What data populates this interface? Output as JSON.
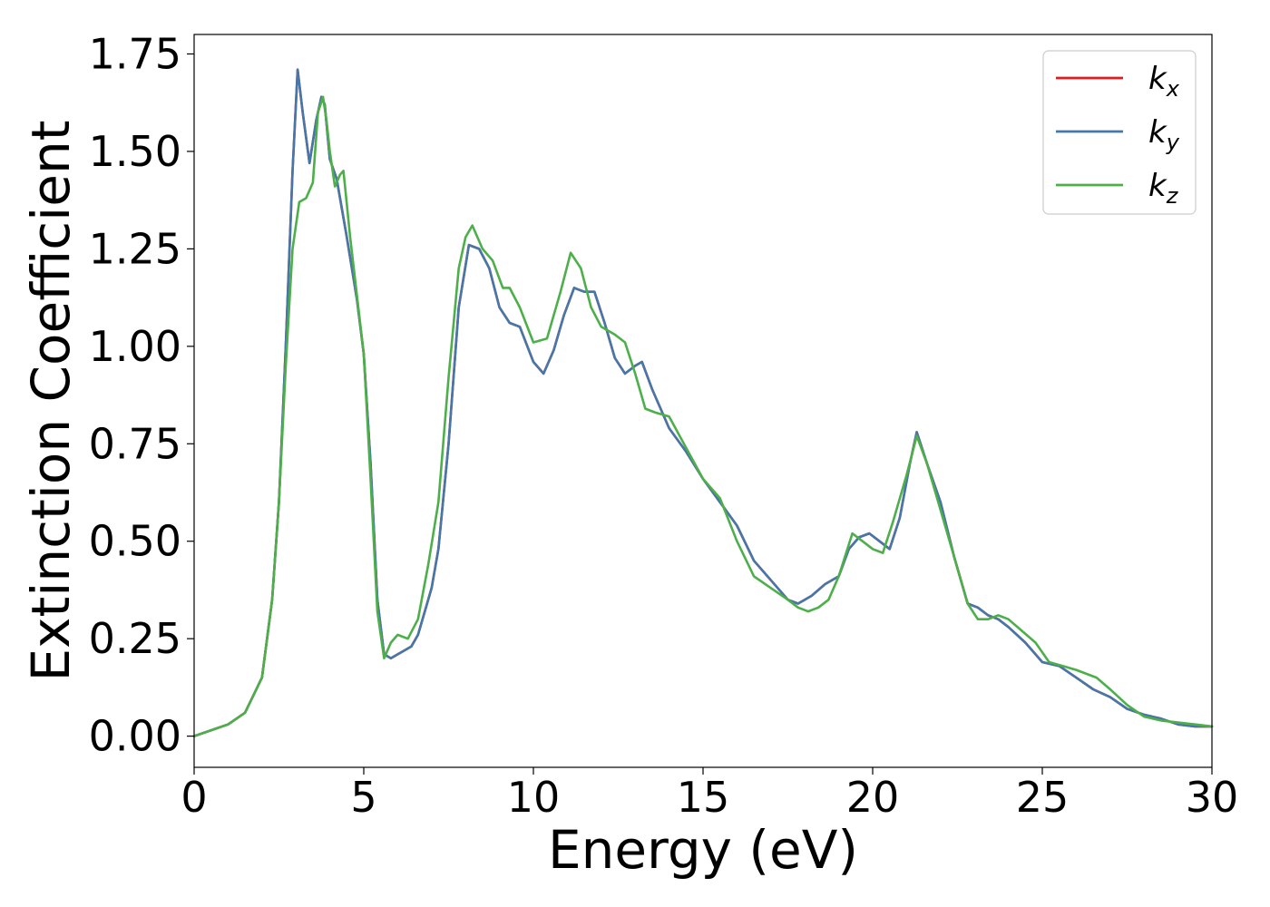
{
  "chart_data": {
    "type": "line",
    "title": "",
    "xlabel": "Energy (eV)",
    "ylabel": "Extinction Coefficient",
    "xlim": [
      0,
      30
    ],
    "ylim": [
      -0.08,
      1.8
    ],
    "xticks": [
      "0",
      "5",
      "10",
      "15",
      "20",
      "25",
      "30"
    ],
    "xtick_values": [
      0,
      5,
      10,
      15,
      20,
      25,
      30
    ],
    "yticks": [
      "0.00",
      "0.25",
      "0.50",
      "0.75",
      "1.00",
      "1.25",
      "1.50",
      "1.75"
    ],
    "ytick_values": [
      0,
      0.25,
      0.5,
      0.75,
      1.0,
      1.25,
      1.5,
      1.75
    ],
    "grid": false,
    "legend_position": "top-right",
    "series": [
      {
        "name": "k_x",
        "label_base": "k",
        "label_sub": "x",
        "color": "#e41a1c",
        "x": [
          0,
          1,
          1.5,
          2,
          2.3,
          2.5,
          2.7,
          2.9,
          3.05,
          3.2,
          3.4,
          3.6,
          3.75,
          3.85,
          4.0,
          4.2,
          4.5,
          4.8,
          5.0,
          5.2,
          5.4,
          5.6,
          5.8,
          6.0,
          6.2,
          6.4,
          6.6,
          6.8,
          7.0,
          7.2,
          7.5,
          7.8,
          8.1,
          8.4,
          8.7,
          9.0,
          9.3,
          9.6,
          10.0,
          10.3,
          10.6,
          10.9,
          11.2,
          11.5,
          11.8,
          12.1,
          12.4,
          12.7,
          13.0,
          13.2,
          13.5,
          14.0,
          14.5,
          15.0,
          15.5,
          16.0,
          16.5,
          17.0,
          17.5,
          17.8,
          18.2,
          18.6,
          19.0,
          19.3,
          19.6,
          19.9,
          20.2,
          20.5,
          20.8,
          21.1,
          21.3,
          21.6,
          22.0,
          22.4,
          22.8,
          23.1,
          23.4,
          23.7,
          24.0,
          24.5,
          25.0,
          25.5,
          26.0,
          26.5,
          27.0,
          27.5,
          28.0,
          28.5,
          29.0,
          29.5,
          30.0
        ],
        "y": [
          0,
          0.03,
          0.06,
          0.15,
          0.35,
          0.6,
          1.0,
          1.45,
          1.71,
          1.6,
          1.47,
          1.58,
          1.64,
          1.62,
          1.48,
          1.43,
          1.28,
          1.12,
          0.98,
          0.7,
          0.35,
          0.21,
          0.2,
          0.21,
          0.22,
          0.23,
          0.26,
          0.32,
          0.38,
          0.48,
          0.75,
          1.1,
          1.26,
          1.25,
          1.2,
          1.1,
          1.06,
          1.05,
          0.96,
          0.93,
          0.99,
          1.08,
          1.15,
          1.14,
          1.14,
          1.06,
          0.97,
          0.93,
          0.95,
          0.96,
          0.89,
          0.79,
          0.73,
          0.66,
          0.6,
          0.54,
          0.45,
          0.4,
          0.35,
          0.34,
          0.36,
          0.39,
          0.41,
          0.48,
          0.51,
          0.52,
          0.5,
          0.48,
          0.56,
          0.7,
          0.78,
          0.7,
          0.6,
          0.46,
          0.34,
          0.33,
          0.31,
          0.3,
          0.28,
          0.24,
          0.19,
          0.18,
          0.15,
          0.12,
          0.1,
          0.07,
          0.055,
          0.045,
          0.03,
          0.025,
          0.025
        ]
      },
      {
        "name": "k_y",
        "label_base": "k",
        "label_sub": "y",
        "color": "#4477aa",
        "x": [
          0,
          1,
          1.5,
          2,
          2.3,
          2.5,
          2.7,
          2.9,
          3.05,
          3.2,
          3.4,
          3.6,
          3.75,
          3.85,
          4.0,
          4.2,
          4.5,
          4.8,
          5.0,
          5.2,
          5.4,
          5.6,
          5.8,
          6.0,
          6.2,
          6.4,
          6.6,
          6.8,
          7.0,
          7.2,
          7.5,
          7.8,
          8.1,
          8.4,
          8.7,
          9.0,
          9.3,
          9.6,
          10.0,
          10.3,
          10.6,
          10.9,
          11.2,
          11.5,
          11.8,
          12.1,
          12.4,
          12.7,
          13.0,
          13.2,
          13.5,
          14.0,
          14.5,
          15.0,
          15.5,
          16.0,
          16.5,
          17.0,
          17.5,
          17.8,
          18.2,
          18.6,
          19.0,
          19.3,
          19.6,
          19.9,
          20.2,
          20.5,
          20.8,
          21.1,
          21.3,
          21.6,
          22.0,
          22.4,
          22.8,
          23.1,
          23.4,
          23.7,
          24.0,
          24.5,
          25.0,
          25.5,
          26.0,
          26.5,
          27.0,
          27.5,
          28.0,
          28.5,
          29.0,
          29.5,
          30.0
        ],
        "y": [
          0,
          0.03,
          0.06,
          0.15,
          0.35,
          0.6,
          1.0,
          1.45,
          1.71,
          1.6,
          1.47,
          1.58,
          1.64,
          1.62,
          1.48,
          1.43,
          1.28,
          1.12,
          0.98,
          0.7,
          0.35,
          0.21,
          0.2,
          0.21,
          0.22,
          0.23,
          0.26,
          0.32,
          0.38,
          0.48,
          0.75,
          1.1,
          1.26,
          1.25,
          1.2,
          1.1,
          1.06,
          1.05,
          0.96,
          0.93,
          0.99,
          1.08,
          1.15,
          1.14,
          1.14,
          1.06,
          0.97,
          0.93,
          0.95,
          0.96,
          0.89,
          0.79,
          0.73,
          0.66,
          0.6,
          0.54,
          0.45,
          0.4,
          0.35,
          0.34,
          0.36,
          0.39,
          0.41,
          0.48,
          0.51,
          0.52,
          0.5,
          0.48,
          0.56,
          0.7,
          0.78,
          0.7,
          0.6,
          0.46,
          0.34,
          0.33,
          0.31,
          0.3,
          0.28,
          0.24,
          0.19,
          0.18,
          0.15,
          0.12,
          0.1,
          0.07,
          0.055,
          0.045,
          0.03,
          0.025,
          0.025
        ]
      },
      {
        "name": "k_z",
        "label_base": "k",
        "label_sub": "z",
        "color": "#4daf4a",
        "x": [
          0,
          1,
          1.5,
          2,
          2.3,
          2.5,
          2.7,
          2.9,
          3.1,
          3.3,
          3.5,
          3.65,
          3.8,
          3.9,
          4.0,
          4.15,
          4.3,
          4.4,
          4.6,
          4.8,
          5.0,
          5.2,
          5.4,
          5.6,
          5.8,
          6.0,
          6.3,
          6.6,
          6.9,
          7.2,
          7.5,
          7.8,
          8.0,
          8.2,
          8.5,
          8.8,
          9.1,
          9.3,
          9.6,
          10.0,
          10.4,
          10.8,
          11.1,
          11.4,
          11.7,
          12.0,
          12.4,
          12.7,
          13.0,
          13.3,
          13.6,
          14.0,
          14.5,
          15.0,
          15.5,
          16.0,
          16.5,
          17.0,
          17.5,
          17.8,
          18.1,
          18.4,
          18.7,
          19.0,
          19.4,
          19.7,
          20.0,
          20.3,
          20.6,
          21.0,
          21.3,
          21.6,
          22.0,
          22.4,
          22.8,
          23.1,
          23.4,
          23.7,
          24.0,
          24.4,
          24.8,
          25.2,
          25.6,
          26.0,
          26.3,
          26.6,
          27.0,
          27.5,
          28.0,
          28.5,
          29.0,
          29.5,
          30.0
        ],
        "y": [
          0,
          0.03,
          0.06,
          0.15,
          0.35,
          0.6,
          0.95,
          1.25,
          1.37,
          1.38,
          1.42,
          1.6,
          1.64,
          1.58,
          1.5,
          1.41,
          1.44,
          1.45,
          1.28,
          1.13,
          0.98,
          0.66,
          0.32,
          0.2,
          0.24,
          0.26,
          0.25,
          0.3,
          0.44,
          0.6,
          0.92,
          1.2,
          1.28,
          1.31,
          1.25,
          1.22,
          1.15,
          1.15,
          1.1,
          1.01,
          1.02,
          1.14,
          1.24,
          1.2,
          1.1,
          1.05,
          1.03,
          1.01,
          0.93,
          0.84,
          0.83,
          0.82,
          0.74,
          0.66,
          0.61,
          0.5,
          0.41,
          0.38,
          0.35,
          0.33,
          0.32,
          0.33,
          0.35,
          0.41,
          0.52,
          0.5,
          0.48,
          0.47,
          0.55,
          0.67,
          0.77,
          0.7,
          0.58,
          0.46,
          0.34,
          0.3,
          0.3,
          0.31,
          0.3,
          0.27,
          0.24,
          0.19,
          0.18,
          0.17,
          0.16,
          0.15,
          0.12,
          0.08,
          0.05,
          0.04,
          0.035,
          0.03,
          0.025
        ]
      }
    ]
  }
}
